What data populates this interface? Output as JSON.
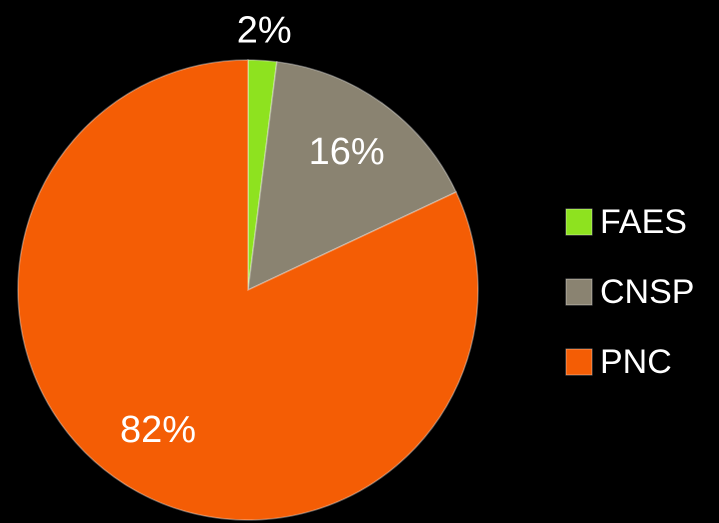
{
  "chart_data": {
    "type": "pie",
    "categories": [
      "FAES",
      "CNSP",
      "PNC"
    ],
    "values": [
      2,
      16,
      82
    ],
    "value_labels": [
      "2%",
      "16%",
      "82%"
    ],
    "colors": [
      "#8ee21f",
      "#8a8371",
      "#f45d05"
    ],
    "legend": "right"
  }
}
